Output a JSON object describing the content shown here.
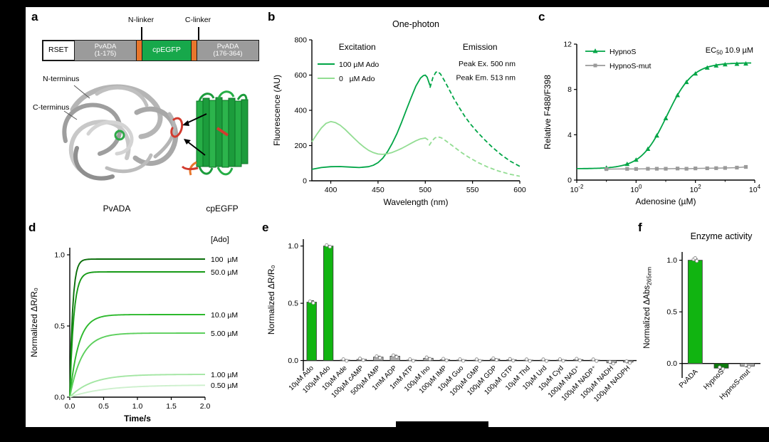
{
  "panel_labels": {
    "a": "a",
    "b": "b",
    "c": "c",
    "d": "d",
    "e": "e",
    "f": "f"
  },
  "panel_a": {
    "n_linker": "N-linker",
    "c_linker": "C-linker",
    "construct": [
      {
        "line1": "RSET",
        "line2": ""
      },
      {
        "line1": "PvADA",
        "line2": "(1-175)"
      },
      {
        "line1": "",
        "line2": ""
      },
      {
        "line1": "cpEGFP",
        "line2": ""
      },
      {
        "line1": "",
        "line2": ""
      },
      {
        "line1": "PvADA",
        "line2": "(176-364)"
      }
    ],
    "labels": {
      "n_terminus": "N-terminus",
      "c_terminus": "C-terminus",
      "pvada": "PvADA",
      "cpegfp": "cpEGFP"
    }
  },
  "chart_data": [
    {
      "id": "b",
      "type": "line",
      "title": "One-photon",
      "xlabel": "Wavelength (nm)",
      "ylabel": "Fluorescence (AU)",
      "xlim": [
        380,
        600
      ],
      "ylim": [
        0,
        800
      ],
      "xticks": [
        400,
        450,
        500,
        550,
        600
      ],
      "yticks": [
        0,
        200,
        400,
        600,
        800
      ],
      "annotations": {
        "excitation": "Excitation",
        "emission": "Emission",
        "peak_ex": "Peak Ex. 500 nm",
        "peak_em": "Peak Em. 513 nm"
      },
      "legend": [
        "100 µM Ado",
        "0   µM Ado"
      ],
      "series": [
        {
          "name": "excitation-100uM-Ado",
          "color": "#00a546",
          "dash": false,
          "x": [
            380,
            390,
            400,
            410,
            420,
            430,
            440,
            445,
            450,
            455,
            460,
            465,
            470,
            475,
            480,
            485,
            490,
            495,
            498,
            500,
            502,
            505
          ],
          "y": [
            65,
            75,
            80,
            81,
            78,
            75,
            80,
            88,
            103,
            128,
            165,
            212,
            268,
            333,
            403,
            472,
            537,
            583,
            597,
            600,
            588,
            540
          ]
        },
        {
          "name": "emission-100uM-Ado",
          "color": "#00a546",
          "dash": true,
          "x": [
            505,
            508,
            511,
            513,
            516,
            520,
            525,
            530,
            536,
            542,
            548,
            555,
            562,
            570,
            580,
            590,
            600
          ],
          "y": [
            528,
            585,
            615,
            621,
            607,
            571,
            521,
            469,
            415,
            364,
            321,
            277,
            237,
            195,
            149,
            111,
            82
          ]
        },
        {
          "name": "excitation-0uM-Ado",
          "color": "#93dd93",
          "dash": false,
          "x": [
            380,
            385,
            390,
            395,
            400,
            405,
            410,
            415,
            420,
            425,
            430,
            435,
            440,
            445,
            450,
            455,
            460,
            465,
            470,
            475,
            480,
            485,
            490,
            495,
            500,
            503
          ],
          "y": [
            222,
            262,
            300,
            326,
            336,
            330,
            315,
            292,
            266,
            240,
            214,
            192,
            173,
            160,
            152,
            150,
            154,
            161,
            172,
            184,
            198,
            213,
            227,
            238,
            243,
            232
          ]
        },
        {
          "name": "emission-0uM-Ado",
          "color": "#93dd93",
          "dash": true,
          "x": [
            504,
            507,
            510,
            513,
            517,
            521,
            526,
            532,
            539,
            547,
            556,
            566,
            577,
            589,
            600
          ],
          "y": [
            200,
            225,
            242,
            250,
            244,
            230,
            210,
            186,
            158,
            130,
            103,
            78,
            56,
            38,
            26
          ]
        }
      ]
    },
    {
      "id": "c",
      "type": "scatter",
      "xlabel": "Adenosine (µM)",
      "ylabel": "Relative F488/F398",
      "xscale": "log",
      "xlim_exp": [
        -2,
        4
      ],
      "ylim": [
        0,
        12
      ],
      "yticks": [
        0,
        4,
        8,
        12
      ],
      "ytick_labels": [
        "0",
        "4",
        "8",
        "12"
      ],
      "xticks": [
        {
          "exp": -2,
          "base": "10",
          "sup": "-2"
        },
        {
          "exp": 0,
          "base": "10",
          "sup": "0"
        },
        {
          "exp": 2,
          "base": "10",
          "sup": "2"
        },
        {
          "exp": 4,
          "base": "10",
          "sup": "4"
        }
      ],
      "minor_tick_exps": [
        -1,
        1,
        3
      ],
      "ec50": {
        "pre": "EC",
        "sub": "50",
        "post": " 10.9 µM"
      },
      "fit": {
        "bottom": 1.0,
        "top": 10.35,
        "ec50": 10.9
      },
      "series": [
        {
          "name": "HypnoS",
          "color": "#00a546",
          "marker": "triangle",
          "x": [
            0.1,
            0.5,
            1,
            2.5,
            5,
            10,
            25,
            50,
            100,
            250,
            500,
            1000,
            2500,
            5000
          ],
          "y": [
            1.08,
            1.41,
            1.78,
            2.74,
            3.92,
            5.45,
            7.48,
            8.64,
            9.39,
            9.91,
            10.1,
            10.2,
            10.25,
            10.27
          ]
        },
        {
          "name": "HypnoS-mut",
          "color": "#9a9a9a",
          "marker": "square",
          "x": [
            0.1,
            0.5,
            1,
            2.5,
            5,
            10,
            25,
            50,
            100,
            250,
            500,
            1000,
            2500,
            5000
          ],
          "y": [
            0.97,
            0.99,
            0.98,
            1.0,
            1.0,
            1.0,
            1.02,
            1.0,
            1.03,
            1.04,
            1.05,
            1.07,
            1.1,
            1.16
          ]
        }
      ]
    },
    {
      "id": "d",
      "type": "line",
      "xlabel": "Time/s",
      "ylabel": "Normalized ΔR/R₀",
      "xlim": [
        0,
        2
      ],
      "ymax": 1.05,
      "xticks": [
        0,
        0.5,
        1,
        1.5,
        2
      ],
      "xtick_labels": [
        "0.0",
        "0.5",
        "1.0",
        "1.5",
        "2.0"
      ],
      "yticks": [
        0,
        0.5,
        1
      ],
      "ytick_labels": [
        "0.0",
        "0.5",
        "1.0"
      ],
      "header": "[Ado]",
      "series": [
        {
          "label": "100  µM",
          "amplitude": 0.97,
          "tau": 0.042,
          "color": "#0a6e0a"
        },
        {
          "label": "50.0 µM",
          "amplitude": 0.88,
          "tau": 0.058,
          "color": "#169a16"
        },
        {
          "label": "10.0 µM",
          "amplitude": 0.58,
          "tau": 0.13,
          "color": "#2db92d"
        },
        {
          "label": "5.00 µM",
          "amplitude": 0.45,
          "tau": 0.18,
          "color": "#5ccf5c"
        },
        {
          "label": "1.00 µM",
          "amplitude": 0.16,
          "tau": 0.32,
          "color": "#a3e6a3"
        },
        {
          "label": "0.50 µM",
          "amplitude": 0.085,
          "tau": 0.5,
          "color": "#cdf0cd"
        }
      ]
    },
    {
      "id": "e",
      "type": "bar",
      "ylabel": "Normalized ΔR/R₀",
      "yticks": [
        0,
        0.5,
        1
      ],
      "ytick_labels": [
        "0.0",
        "0.5",
        "1.0"
      ],
      "categories": [
        "10µM Ado",
        "100µM Ado",
        "10µM Ade",
        "100µM cAMP",
        "500µM AMP",
        "1mM ADP",
        "1mM ATP",
        "100µM Ino",
        "100µM IMP",
        "10µM Guo",
        "100µM GMP",
        "100µM GDP",
        "100µM GTP",
        "10µM Thd",
        "10µM Urd",
        "10µM Cyd",
        "100µM NAD⁺",
        "100µM NADP⁺",
        "100µM NADH",
        "100µM NADPH"
      ],
      "values": [
        0.51,
        1.0,
        0.004,
        0.01,
        0.03,
        0.038,
        0.004,
        0.02,
        0.008,
        0.004,
        0.003,
        0.012,
        0.006,
        0.003,
        0.003,
        0.004,
        0.008,
        0.003,
        -0.02,
        -0.014
      ],
      "errors": [
        0.012,
        0.006,
        0.004,
        0.004,
        0.008,
        0.008,
        0.004,
        0.006,
        0.004,
        0.004,
        0.004,
        0.005,
        0.004,
        0.004,
        0.004,
        0.004,
        0.005,
        0.004,
        0.006,
        0.006
      ],
      "bar_colors": {
        "highlight": "#11b411",
        "normal": "#ababab"
      },
      "highlight_count": 2
    },
    {
      "id": "f",
      "type": "bar",
      "title": "Enzyme activity",
      "ylabel_main": "Normalized ΔAbs",
      "ylabel_sub": "265nm",
      "yticks": [
        0,
        0.5,
        1
      ],
      "ytick_labels": [
        "0.0",
        "0.5",
        "1.0"
      ],
      "categories": [
        "PvADA",
        "HypnoS",
        "HypnoS-mut"
      ],
      "values": [
        1.0,
        -0.045,
        -0.025
      ],
      "errors": [
        0.015,
        0.01,
        0.008
      ],
      "colors": [
        "#11b411",
        "#0c7a0c",
        "#ababab"
      ]
    }
  ]
}
